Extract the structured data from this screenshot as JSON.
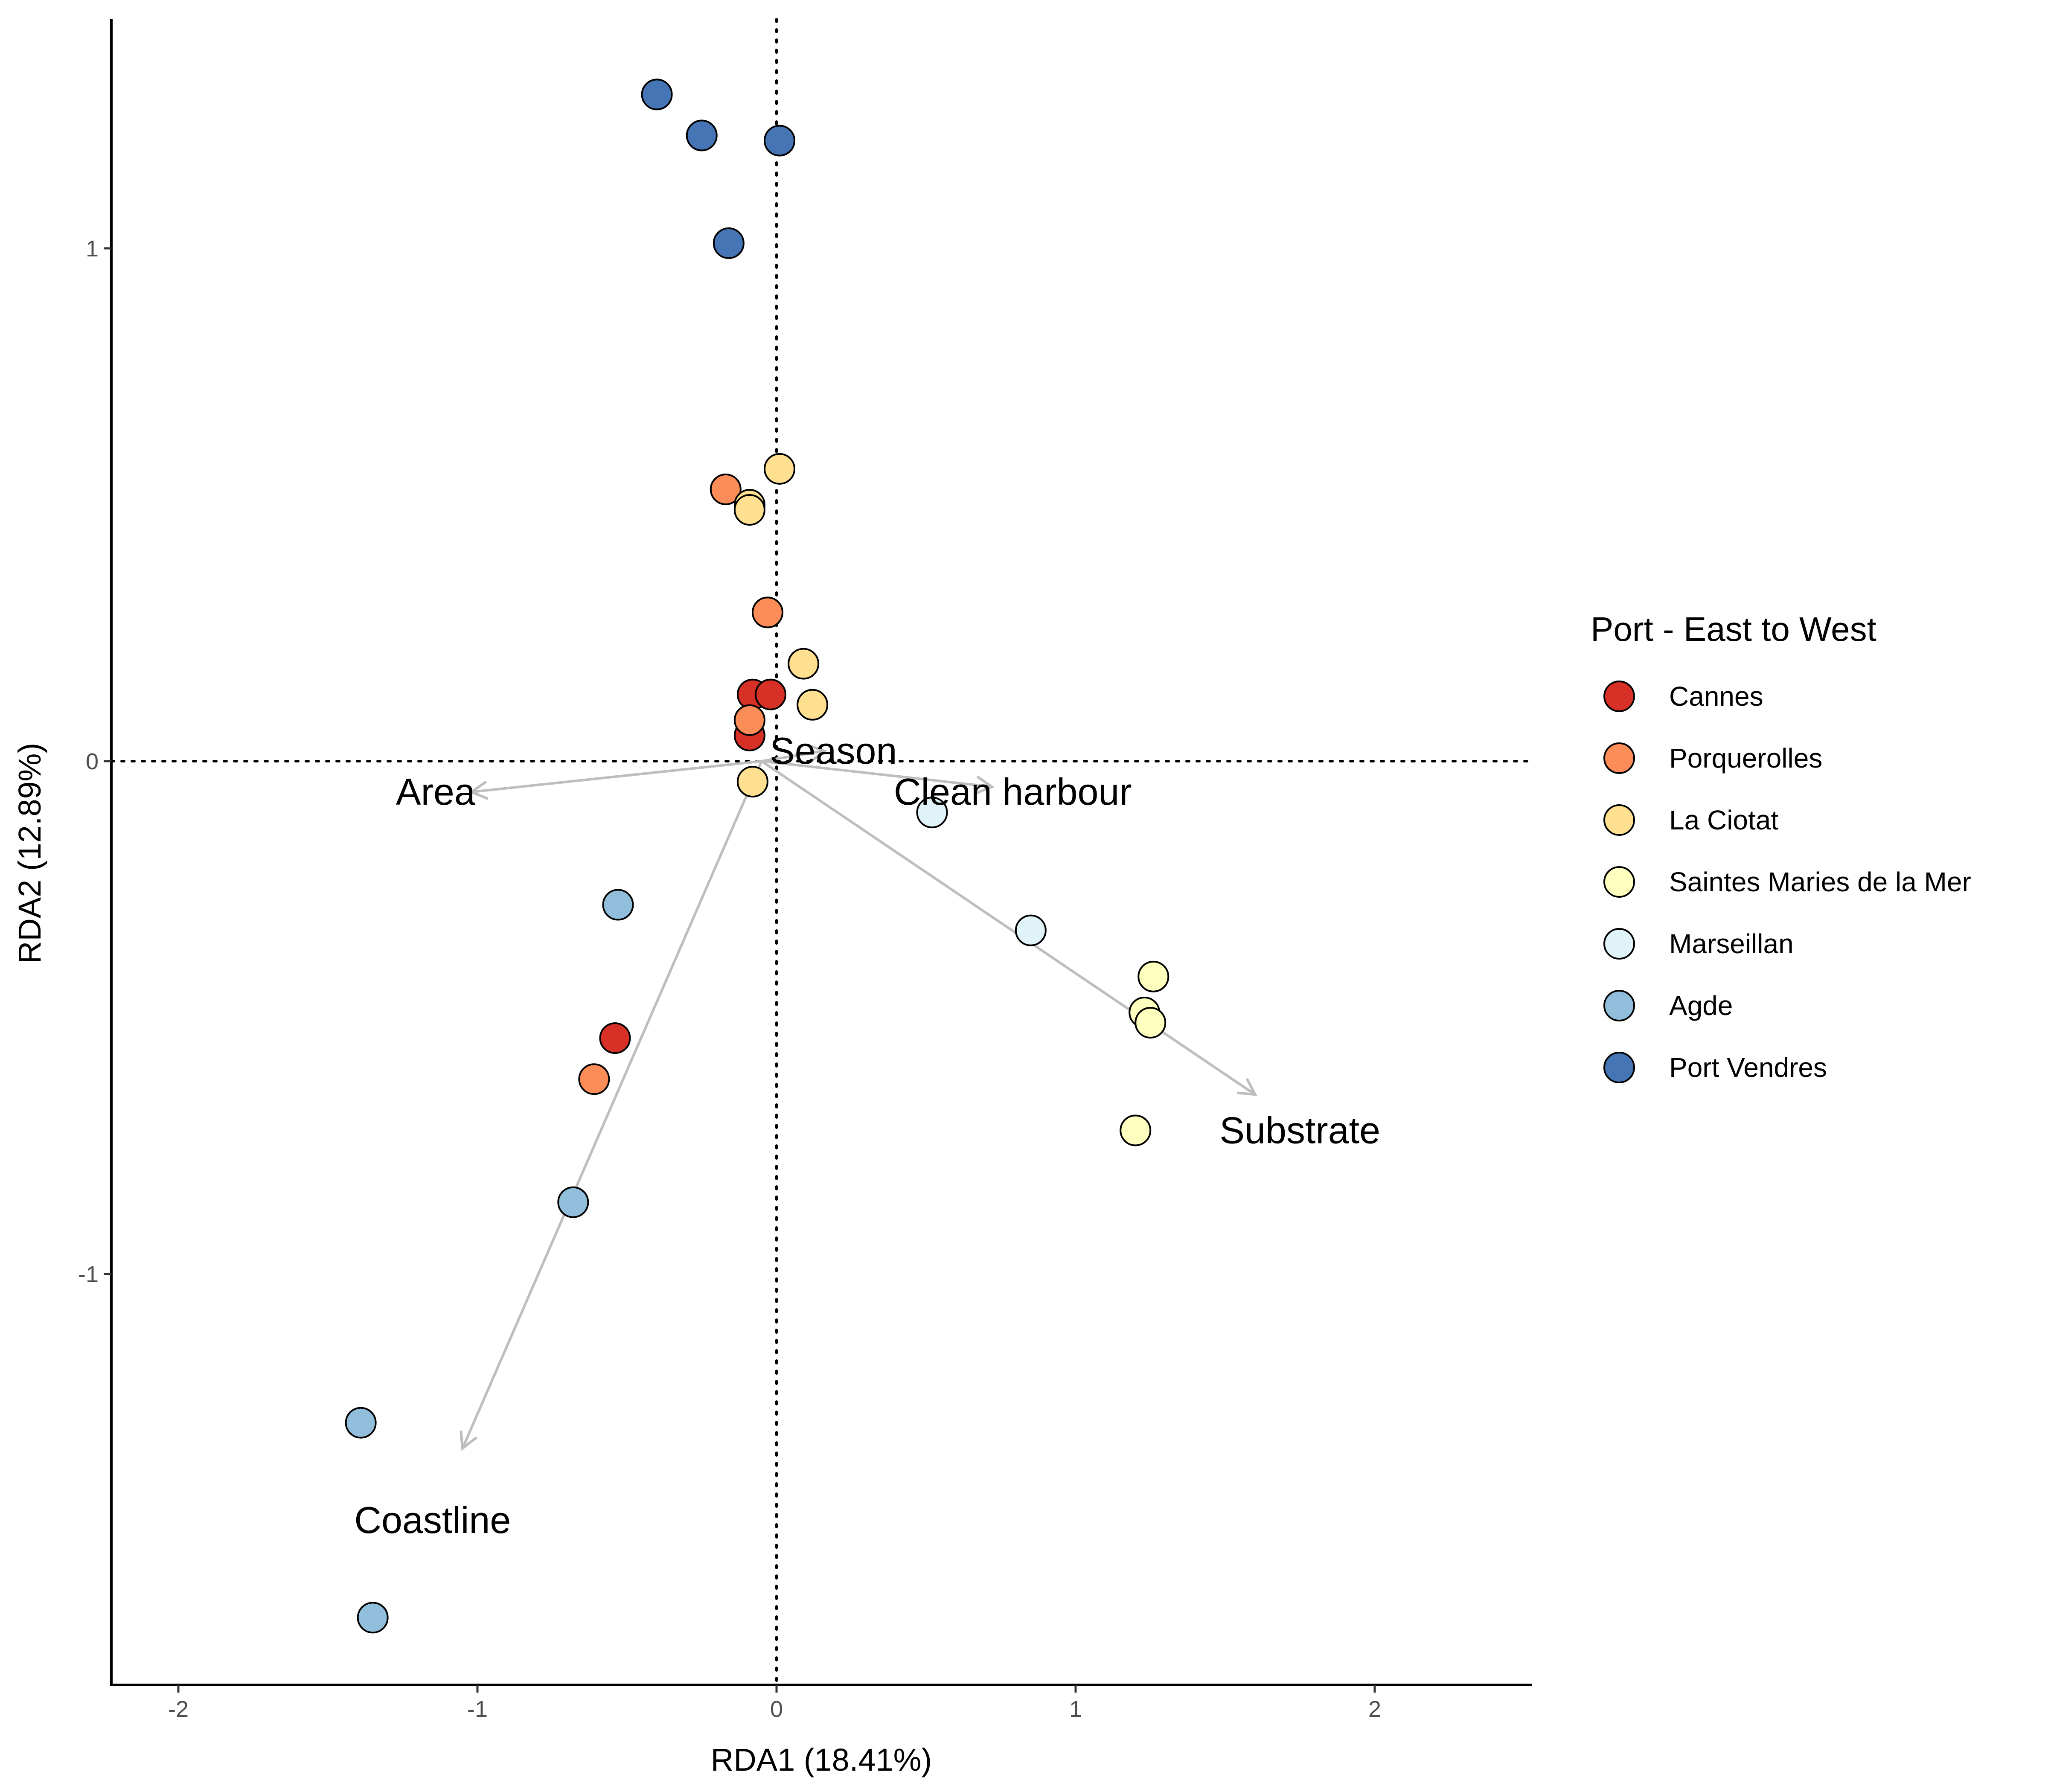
{
  "chart_data": {
    "type": "scatter",
    "subtype": "rda-biplot",
    "xlabel": "RDA1 (18.41%)",
    "ylabel": "RDA2 (12.89%)",
    "xlim": [
      -2.22,
      2.52
    ],
    "ylim": [
      -1.8,
      1.45
    ],
    "x_ticks": [
      -2,
      -1,
      0,
      1,
      2
    ],
    "x_tick_labels": [
      "-2",
      "-1",
      "0",
      "1",
      "2"
    ],
    "y_ticks": [
      -1,
      0,
      1
    ],
    "y_tick_labels": [
      "-1",
      "0",
      "1"
    ],
    "grid": false,
    "zero_lines": "dotted",
    "legend": {
      "title": "Port - East to West",
      "position": "right"
    },
    "series": [
      {
        "name": "Cannes",
        "color": "#d73027",
        "points": [
          [
            -0.08,
            0.13
          ],
          [
            -0.02,
            0.13
          ],
          [
            -0.09,
            0.05
          ],
          [
            -0.54,
            -0.54
          ]
        ]
      },
      {
        "name": "Porquerolles",
        "color": "#fc8d59",
        "points": [
          [
            -0.17,
            0.53
          ],
          [
            -0.03,
            0.29
          ],
          [
            -0.09,
            0.08
          ],
          [
            -0.61,
            -0.62
          ]
        ]
      },
      {
        "name": "La Ciotat",
        "color": "#fee090",
        "points": [
          [
            0.01,
            0.57
          ],
          [
            -0.09,
            0.5
          ],
          [
            -0.09,
            0.49
          ],
          [
            0.09,
            0.19
          ],
          [
            0.12,
            0.11
          ],
          [
            -0.08,
            -0.04
          ]
        ]
      },
      {
        "name": "Saintes Maries de la Mer",
        "color": "#ffffbf",
        "points": [
          [
            1.26,
            -0.42
          ],
          [
            1.23,
            -0.49
          ],
          [
            1.25,
            -0.51
          ],
          [
            1.2,
            -0.72
          ]
        ]
      },
      {
        "name": "Marseillan",
        "color": "#e0f3f8",
        "points": [
          [
            0.52,
            -0.1
          ],
          [
            0.85,
            -0.33
          ]
        ]
      },
      {
        "name": "Agde",
        "color": "#91bfdb",
        "points": [
          [
            -0.53,
            -0.28
          ],
          [
            -0.68,
            -0.86
          ],
          [
            -1.39,
            -1.29
          ],
          [
            -1.35,
            -1.67
          ]
        ]
      },
      {
        "name": "Port Vendres",
        "color": "#4575b4",
        "points": [
          [
            -0.4,
            1.3
          ],
          [
            -0.25,
            1.22
          ],
          [
            0.01,
            1.21
          ],
          [
            -0.16,
            1.01
          ]
        ]
      }
    ],
    "arrows": [
      {
        "label": "Area",
        "x": -1.02,
        "y": -0.06,
        "label_x": -1.14,
        "label_y": -0.06
      },
      {
        "label": "Season",
        "x": 0.16,
        "y": 0.02,
        "label_x": 0.19,
        "label_y": 0.02
      },
      {
        "label": "Clean harbour",
        "x": 0.72,
        "y": -0.05,
        "label_x": 0.79,
        "label_y": -0.06
      },
      {
        "label": "Substrate",
        "x": 1.6,
        "y": -0.65,
        "label_x": 1.75,
        "label_y": -0.72
      },
      {
        "label": "Coastline",
        "x": -1.05,
        "y": -1.34,
        "label_x": -1.15,
        "label_y": -1.48
      }
    ],
    "arrow_origin": [
      -0.05,
      0.0
    ],
    "arrow_color": "#bebebe"
  }
}
